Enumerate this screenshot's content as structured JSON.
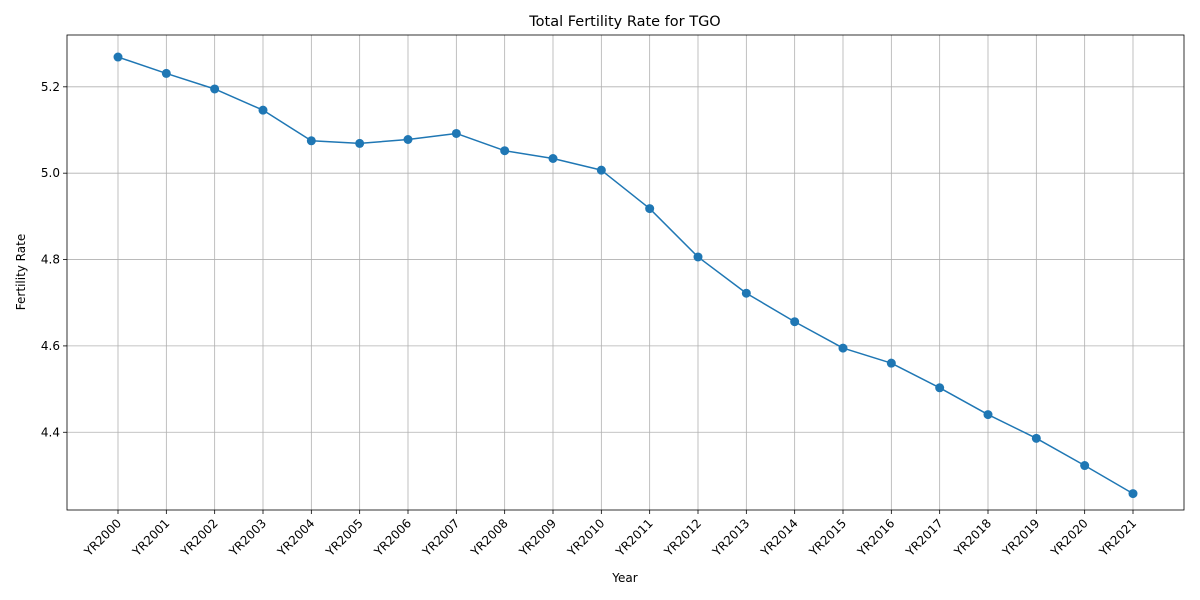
{
  "chart_data": {
    "type": "line",
    "title": "Total Fertility Rate for TGO",
    "xlabel": "Year",
    "ylabel": "Fertility Rate",
    "categories": [
      "YR2000",
      "YR2001",
      "YR2002",
      "YR2003",
      "YR2004",
      "YR2005",
      "YR2006",
      "YR2007",
      "YR2008",
      "YR2009",
      "YR2010",
      "YR2011",
      "YR2012",
      "YR2013",
      "YR2014",
      "YR2015",
      "YR2016",
      "YR2017",
      "YR2018",
      "YR2019",
      "YR2020",
      "YR2021"
    ],
    "series": [
      {
        "values": [
          5.269,
          5.231,
          5.195,
          5.146,
          5.075,
          5.069,
          5.078,
          5.092,
          5.052,
          5.034,
          5.007,
          4.918,
          4.806,
          4.722,
          4.656,
          4.595,
          4.56,
          4.503,
          4.441,
          4.386,
          4.323,
          4.258
        ],
        "color": "#1f77b4",
        "marker": "circle"
      }
    ],
    "ylim": [
      4.22,
      5.32
    ],
    "yticks": [
      4.4,
      4.6,
      4.8,
      5.0,
      5.2
    ],
    "ytick_labels": [
      "4.4",
      "4.6",
      "4.8",
      "5.0",
      "5.2"
    ],
    "grid": true,
    "x_tick_rotation_deg": 45
  }
}
